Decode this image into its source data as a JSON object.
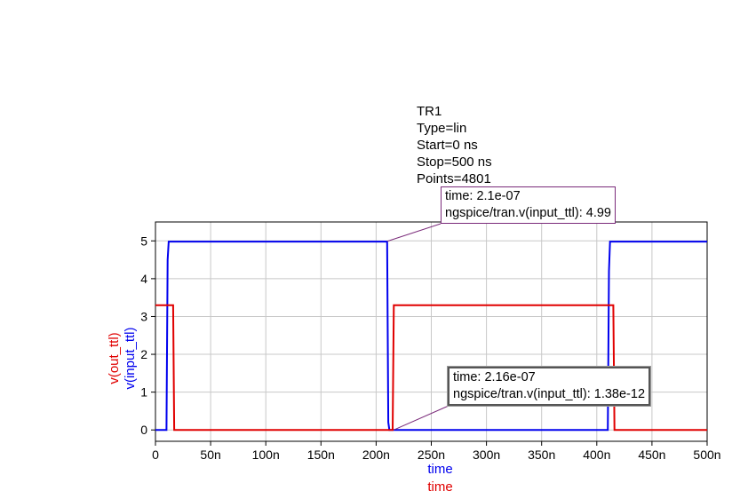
{
  "simulation": {
    "name": "TR1",
    "type": "Type=lin",
    "start": "Start=0 ns",
    "stop": "Stop=500 ns",
    "points": "Points=4801"
  },
  "markers": [
    {
      "time_text": "time: 2.1e-07",
      "value_text": "ngspice/tran.v(input_ttl): 4.99",
      "x": 210,
      "y": 4.99
    },
    {
      "time_text": "time: 2.16e-07",
      "value_text": "ngspice/tran.v(input_ttl): 1.38e-12",
      "x": 216,
      "y": 0
    }
  ],
  "chart_data": {
    "type": "line",
    "xlabel": [
      "time",
      "time"
    ],
    "ylabel": [
      "v(out_ttl)",
      "v(input_ttl)"
    ],
    "xlim": [
      0,
      500
    ],
    "ylim": [
      -0.3,
      5.5
    ],
    "xticks": [
      0,
      50,
      100,
      150,
      200,
      250,
      300,
      350,
      400,
      450,
      500
    ],
    "xtick_labels": [
      "0",
      "50n",
      "100n",
      "150n",
      "200n",
      "250n",
      "300n",
      "350n",
      "400n",
      "450n",
      "500n"
    ],
    "yticks": [
      0,
      1,
      2,
      3,
      4,
      5
    ],
    "ytick_labels": [
      "0",
      "1",
      "2",
      "3",
      "4",
      "5"
    ],
    "grid": true,
    "colors": {
      "input": "#0000ee",
      "output": "#e00000",
      "grid": "#c8c8c8"
    },
    "series": [
      {
        "name": "v(input_ttl)",
        "color": "#0000ee",
        "x": [
          0,
          10,
          11,
          12,
          210,
          211,
          212,
          410,
          411,
          412,
          500
        ],
        "y": [
          0,
          0,
          4.5,
          4.98,
          4.98,
          0.2,
          0,
          0,
          4.2,
          4.98,
          4.98
        ]
      },
      {
        "name": "v(out_ttl)",
        "color": "#e00000",
        "x": [
          0,
          16,
          17,
          215,
          216,
          415,
          416,
          500
        ],
        "y": [
          3.3,
          3.3,
          0,
          0,
          3.3,
          3.3,
          0,
          0
        ]
      }
    ]
  }
}
